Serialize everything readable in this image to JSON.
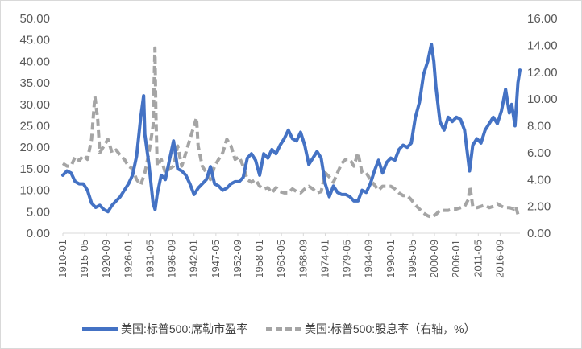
{
  "chart_data": {
    "type": "line",
    "title": "",
    "x_tick_labels": [
      "1910-01",
      "1915-05",
      "1920-09",
      "1926-01",
      "1931-05",
      "1936-09",
      "1942-01",
      "1947-05",
      "1952-09",
      "1958-01",
      "1963-05",
      "1968-09",
      "1974-01",
      "1979-05",
      "1984-09",
      "1990-01",
      "1995-05",
      "2000-09",
      "2006-01",
      "2011-05",
      "2016-09"
    ],
    "x_range": [
      1910.0,
      2021.5
    ],
    "y_left": {
      "ticks": [
        "0.00",
        "5.00",
        "10.00",
        "15.00",
        "20.00",
        "25.00",
        "30.00",
        "35.00",
        "40.00",
        "45.00",
        "50.00"
      ],
      "range": [
        0,
        50
      ]
    },
    "y_right": {
      "ticks": [
        "0.00",
        "2.00",
        "4.00",
        "6.00",
        "8.00",
        "10.00",
        "12.00",
        "14.00",
        "16.00"
      ],
      "range": [
        0,
        16
      ]
    },
    "grid": false,
    "legend_position": "bottom",
    "series": [
      {
        "name": "美国:标普500:席勒市盈率",
        "axis": "left",
        "color": "#4472C4",
        "style": "solid",
        "x": [
          1910.0,
          1911.0,
          1912.0,
          1913.0,
          1914.0,
          1915.0,
          1916.0,
          1917.0,
          1918.0,
          1919.0,
          1920.0,
          1921.0,
          1922.0,
          1923.0,
          1924.0,
          1925.0,
          1926.0,
          1927.0,
          1928.0,
          1929.0,
          1929.7,
          1930.0,
          1931.0,
          1932.0,
          1932.5,
          1933.0,
          1934.0,
          1935.0,
          1936.0,
          1937.0,
          1938.0,
          1939.0,
          1940.0,
          1941.0,
          1942.0,
          1943.0,
          1944.0,
          1945.0,
          1946.0,
          1947.0,
          1948.0,
          1949.0,
          1950.0,
          1951.0,
          1952.0,
          1953.0,
          1954.0,
          1955.0,
          1956.0,
          1957.0,
          1958.0,
          1959.0,
          1960.0,
          1961.0,
          1962.0,
          1963.0,
          1964.0,
          1965.0,
          1966.0,
          1967.0,
          1968.0,
          1969.0,
          1970.0,
          1971.0,
          1972.0,
          1973.0,
          1974.0,
          1975.0,
          1976.0,
          1977.0,
          1978.0,
          1979.0,
          1980.0,
          1981.0,
          1982.0,
          1983.0,
          1984.0,
          1985.0,
          1986.0,
          1987.0,
          1988.0,
          1989.0,
          1990.0,
          1991.0,
          1992.0,
          1993.0,
          1994.0,
          1995.0,
          1996.0,
          1997.0,
          1998.0,
          1999.0,
          1999.9,
          2000.5,
          2001.0,
          2002.0,
          2003.0,
          2004.0,
          2005.0,
          2006.0,
          2007.0,
          2008.0,
          2009.2,
          2010.0,
          2011.0,
          2012.0,
          2013.0,
          2014.0,
          2015.0,
          2016.0,
          2017.0,
          2018.0,
          2018.9,
          2019.5,
          2020.3,
          2021.0,
          2021.5
        ],
        "values": [
          13.5,
          14.5,
          14.0,
          12.0,
          11.5,
          11.5,
          10.0,
          7.0,
          6.0,
          6.5,
          5.5,
          5.0,
          6.5,
          7.5,
          8.5,
          10.0,
          11.5,
          13.5,
          18.0,
          27.0,
          32.0,
          23.0,
          16.0,
          7.0,
          5.5,
          9.0,
          13.5,
          12.5,
          17.0,
          21.5,
          15.0,
          14.5,
          13.5,
          11.5,
          9.0,
          10.5,
          11.5,
          12.5,
          15.5,
          11.5,
          11.0,
          10.0,
          10.5,
          11.5,
          12.0,
          12.0,
          13.0,
          17.5,
          18.5,
          17.0,
          13.5,
          18.5,
          17.5,
          19.5,
          18.5,
          20.5,
          22.0,
          24.0,
          22.0,
          21.5,
          23.5,
          20.5,
          16.0,
          17.5,
          19.0,
          17.5,
          11.5,
          8.5,
          11.0,
          9.5,
          9.0,
          9.0,
          8.5,
          7.5,
          7.5,
          10.0,
          9.5,
          11.5,
          14.5,
          17.0,
          14.0,
          16.5,
          17.5,
          17.0,
          19.5,
          20.5,
          20.0,
          21.0,
          27.0,
          30.5,
          37.0,
          40.0,
          44.0,
          40.0,
          34.0,
          26.0,
          24.0,
          27.0,
          26.0,
          27.0,
          26.5,
          24.0,
          14.5,
          20.5,
          22.0,
          21.0,
          24.0,
          25.5,
          27.0,
          25.5,
          28.5,
          33.5,
          28.0,
          30.0,
          25.0,
          35.0,
          38.0
        ]
      },
      {
        "name": "美国:标普500:股息率（右轴，%）",
        "axis": "right",
        "color": "#A5A5A5",
        "style": "dashed",
        "x": [
          1910.0,
          1911.0,
          1912.0,
          1913.0,
          1914.0,
          1915.0,
          1916.0,
          1917.0,
          1917.8,
          1918.5,
          1919.0,
          1920.0,
          1921.0,
          1922.0,
          1923.0,
          1924.0,
          1925.0,
          1926.0,
          1927.0,
          1928.0,
          1929.0,
          1930.0,
          1931.0,
          1932.0,
          1932.45,
          1932.7,
          1933.0,
          1934.0,
          1935.0,
          1936.0,
          1937.0,
          1938.0,
          1939.0,
          1940.0,
          1941.0,
          1942.0,
          1942.6,
          1943.0,
          1944.0,
          1945.0,
          1946.0,
          1947.0,
          1948.0,
          1949.0,
          1950.0,
          1951.0,
          1952.0,
          1953.0,
          1954.0,
          1955.0,
          1956.0,
          1957.0,
          1958.0,
          1959.0,
          1960.0,
          1961.0,
          1962.0,
          1963.0,
          1964.0,
          1965.0,
          1966.0,
          1967.0,
          1968.0,
          1969.0,
          1970.0,
          1971.0,
          1972.0,
          1973.0,
          1974.0,
          1975.0,
          1976.0,
          1977.0,
          1978.0,
          1979.0,
          1980.0,
          1981.0,
          1982.0,
          1983.0,
          1984.0,
          1985.0,
          1986.0,
          1987.0,
          1988.0,
          1989.0,
          1990.0,
          1991.0,
          1992.0,
          1993.0,
          1994.0,
          1995.0,
          1996.0,
          1997.0,
          1998.0,
          1999.0,
          2000.0,
          2001.0,
          2002.0,
          2003.0,
          2004.0,
          2005.0,
          2006.0,
          2007.0,
          2008.0,
          2008.9,
          2009.3,
          2010.0,
          2011.0,
          2012.0,
          2013.0,
          2014.0,
          2015.0,
          2016.0,
          2017.0,
          2018.0,
          2019.0,
          2020.0,
          2020.5,
          2021.0,
          2021.5
        ],
        "values": [
          5.2,
          5.0,
          5.0,
          5.7,
          5.4,
          5.8,
          5.5,
          7.0,
          10.2,
          8.5,
          6.0,
          6.5,
          7.0,
          6.0,
          6.2,
          5.8,
          5.5,
          5.0,
          4.8,
          4.0,
          3.6,
          4.5,
          6.0,
          8.0,
          13.8,
          9.0,
          5.0,
          5.5,
          4.5,
          4.8,
          5.0,
          6.5,
          5.0,
          6.0,
          7.0,
          8.0,
          8.6,
          6.5,
          5.0,
          4.5,
          4.0,
          5.0,
          5.5,
          6.0,
          7.0,
          6.5,
          5.5,
          5.7,
          5.0,
          4.0,
          3.8,
          4.0,
          3.5,
          3.3,
          3.4,
          3.0,
          3.4,
          3.1,
          3.0,
          3.0,
          3.3,
          3.1,
          3.0,
          3.3,
          3.5,
          3.3,
          3.0,
          3.1,
          4.5,
          4.2,
          3.8,
          4.5,
          5.2,
          5.5,
          5.5,
          5.0,
          6.0,
          4.5,
          4.5,
          4.0,
          3.6,
          3.2,
          3.5,
          3.5,
          3.5,
          3.3,
          3.0,
          2.8,
          2.8,
          2.5,
          2.1,
          1.8,
          1.5,
          1.3,
          1.2,
          1.4,
          1.7,
          1.7,
          1.7,
          1.8,
          1.8,
          1.9,
          2.0,
          2.5,
          3.5,
          2.0,
          1.9,
          2.0,
          2.1,
          1.9,
          2.0,
          2.2,
          2.0,
          1.9,
          1.9,
          1.8,
          2.0,
          1.4,
          1.3
        ]
      }
    ]
  }
}
